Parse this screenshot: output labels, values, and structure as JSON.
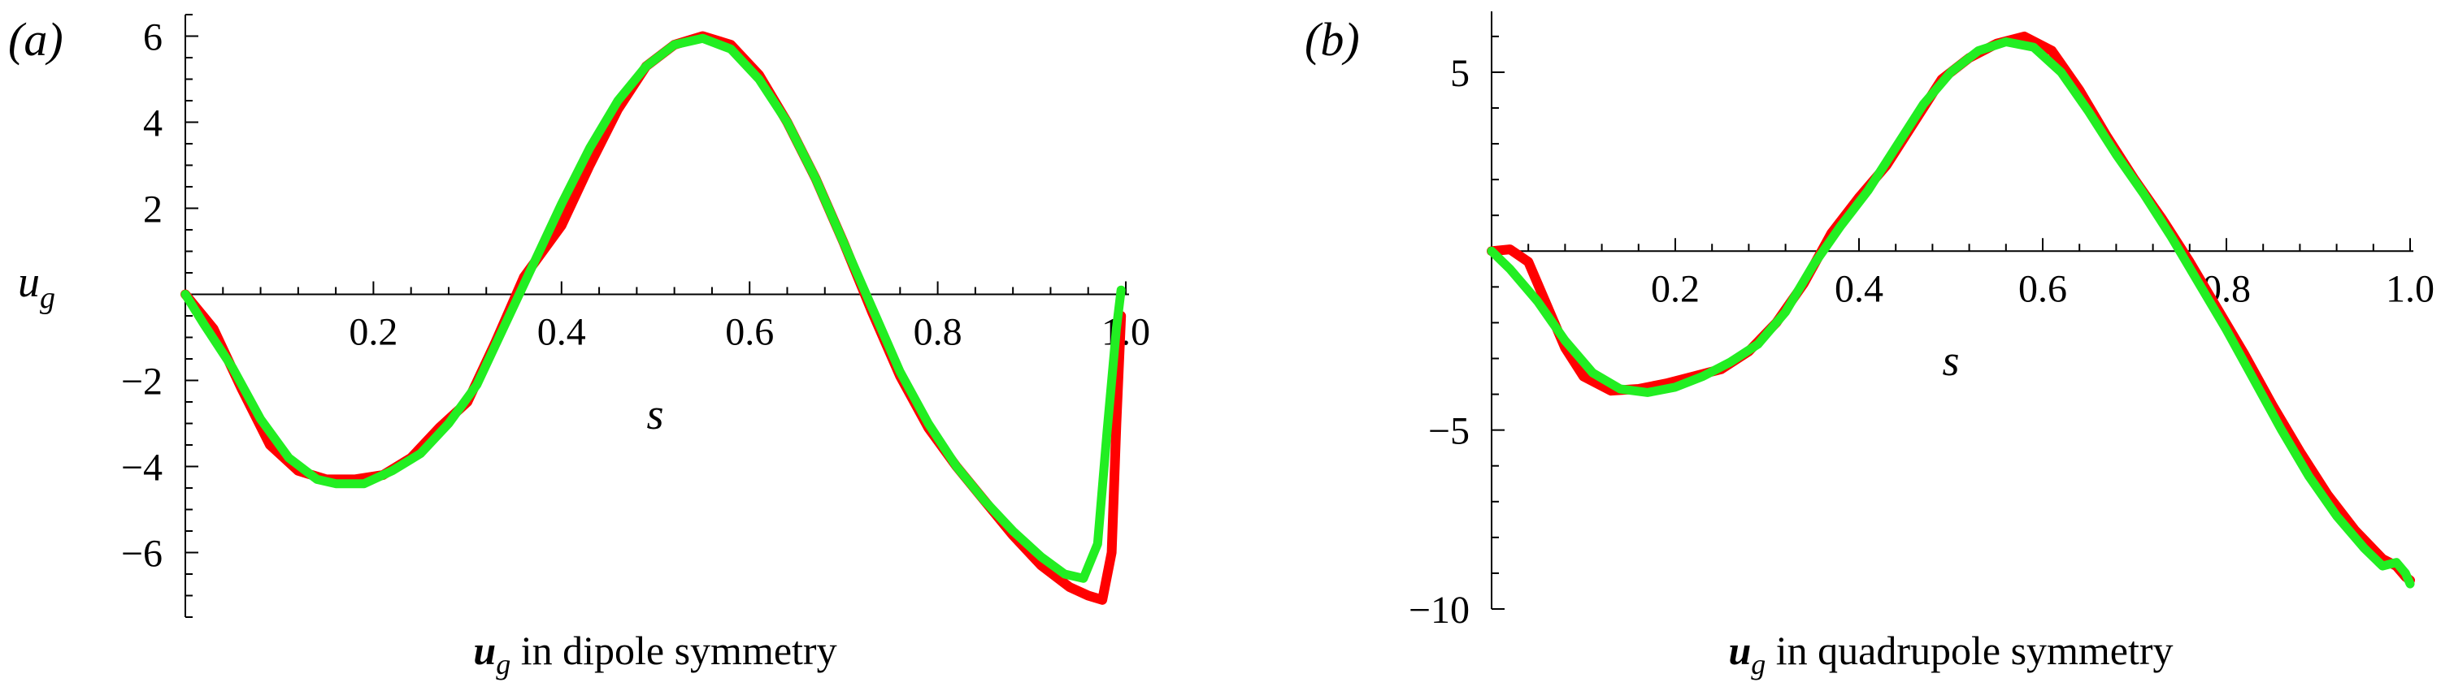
{
  "chart_data": [
    {
      "type": "line",
      "panel_label": "(a)",
      "caption": {
        "variable": "u",
        "subscript": "g",
        "text": " in dipole symmetry"
      },
      "ylabel": {
        "variable": "u",
        "subscript": "g"
      },
      "xlabel": "s",
      "xlim": [
        0,
        1
      ],
      "ylim": [
        -7.5,
        6.5
      ],
      "x_ticks": [
        0.2,
        0.4,
        0.6,
        0.8,
        1.0
      ],
      "x_tick_labels": [
        "0.2",
        "0.4",
        "0.6",
        "0.8",
        "1.0"
      ],
      "y_ticks": [
        -6,
        -4,
        -2,
        2,
        4,
        6
      ],
      "y_tick_labels": [
        "−6",
        "−4",
        "−2",
        "2",
        "4",
        "6"
      ],
      "series": [
        {
          "color": "#ff0000",
          "points": [
            [
              0,
              0
            ],
            [
              0.03,
              -0.8
            ],
            [
              0.06,
              -2.2
            ],
            [
              0.09,
              -3.5
            ],
            [
              0.12,
              -4.1
            ],
            [
              0.15,
              -4.3
            ],
            [
              0.18,
              -4.3
            ],
            [
              0.21,
              -4.2
            ],
            [
              0.24,
              -3.8
            ],
            [
              0.27,
              -3.1
            ],
            [
              0.3,
              -2.5
            ],
            [
              0.33,
              -1.1
            ],
            [
              0.36,
              0.4
            ],
            [
              0.4,
              1.6
            ],
            [
              0.43,
              3.0
            ],
            [
              0.46,
              4.3
            ],
            [
              0.49,
              5.3
            ],
            [
              0.52,
              5.8
            ],
            [
              0.55,
              6.0
            ],
            [
              0.58,
              5.8
            ],
            [
              0.61,
              5.1
            ],
            [
              0.64,
              4.0
            ],
            [
              0.67,
              2.7
            ],
            [
              0.7,
              1.2
            ],
            [
              0.73,
              -0.4
            ],
            [
              0.76,
              -1.9
            ],
            [
              0.79,
              -3.1
            ],
            [
              0.82,
              -4.0
            ],
            [
              0.85,
              -4.8
            ],
            [
              0.88,
              -5.6
            ],
            [
              0.91,
              -6.3
            ],
            [
              0.94,
              -6.8
            ],
            [
              0.96,
              -7.0
            ],
            [
              0.975,
              -7.1
            ],
            [
              0.985,
              -6.0
            ],
            [
              0.99,
              -3.0
            ],
            [
              0.995,
              -0.5
            ]
          ]
        },
        {
          "color": "#22ee22",
          "points": [
            [
              0,
              0
            ],
            [
              0.02,
              -0.7
            ],
            [
              0.05,
              -1.7
            ],
            [
              0.08,
              -2.9
            ],
            [
              0.11,
              -3.8
            ],
            [
              0.14,
              -4.3
            ],
            [
              0.16,
              -4.4
            ],
            [
              0.19,
              -4.4
            ],
            [
              0.22,
              -4.1
            ],
            [
              0.25,
              -3.7
            ],
            [
              0.28,
              -3.0
            ],
            [
              0.31,
              -2.1
            ],
            [
              0.34,
              -0.7
            ],
            [
              0.37,
              0.7
            ],
            [
              0.4,
              2.1
            ],
            [
              0.43,
              3.4
            ],
            [
              0.46,
              4.5
            ],
            [
              0.49,
              5.3
            ],
            [
              0.52,
              5.8
            ],
            [
              0.55,
              5.95
            ],
            [
              0.58,
              5.7
            ],
            [
              0.61,
              5.0
            ],
            [
              0.64,
              4.0
            ],
            [
              0.67,
              2.7
            ],
            [
              0.7,
              1.2
            ],
            [
              0.73,
              -0.3
            ],
            [
              0.76,
              -1.8
            ],
            [
              0.79,
              -3.0
            ],
            [
              0.82,
              -4.0
            ],
            [
              0.85,
              -4.8
            ],
            [
              0.88,
              -5.5
            ],
            [
              0.91,
              -6.1
            ],
            [
              0.935,
              -6.5
            ],
            [
              0.955,
              -6.6
            ],
            [
              0.97,
              -5.8
            ],
            [
              0.98,
              -3.2
            ],
            [
              0.99,
              -0.8
            ],
            [
              0.995,
              0.1
            ]
          ]
        }
      ]
    },
    {
      "type": "line",
      "panel_label": "(b)",
      "caption": {
        "variable": "u",
        "subscript": "g",
        "text": " in quadrupole symmetry"
      },
      "xlabel": "s",
      "xlim": [
        0,
        1
      ],
      "ylim": [
        -10,
        6.7
      ],
      "x_ticks": [
        0.2,
        0.4,
        0.6,
        0.8,
        1.0
      ],
      "x_tick_labels": [
        "0.2",
        "0.4",
        "0.6",
        "0.8",
        "1.0"
      ],
      "y_ticks": [
        -10,
        -5,
        5
      ],
      "y_tick_labels": [
        "−10",
        "−5",
        "5"
      ],
      "series": [
        {
          "color": "#ff0000",
          "points": [
            [
              0,
              0
            ],
            [
              0.02,
              0.05
            ],
            [
              0.04,
              -0.3
            ],
            [
              0.06,
              -1.5
            ],
            [
              0.08,
              -2.7
            ],
            [
              0.1,
              -3.5
            ],
            [
              0.13,
              -3.9
            ],
            [
              0.16,
              -3.85
            ],
            [
              0.19,
              -3.7
            ],
            [
              0.22,
              -3.5
            ],
            [
              0.25,
              -3.3
            ],
            [
              0.28,
              -2.8
            ],
            [
              0.31,
              -2.0
            ],
            [
              0.34,
              -0.9
            ],
            [
              0.37,
              0.5
            ],
            [
              0.4,
              1.5
            ],
            [
              0.43,
              2.4
            ],
            [
              0.46,
              3.6
            ],
            [
              0.49,
              4.8
            ],
            [
              0.52,
              5.4
            ],
            [
              0.55,
              5.8
            ],
            [
              0.58,
              6.0
            ],
            [
              0.61,
              5.6
            ],
            [
              0.64,
              4.5
            ],
            [
              0.67,
              3.2
            ],
            [
              0.7,
              2.0
            ],
            [
              0.73,
              0.9
            ],
            [
              0.76,
              -0.3
            ],
            [
              0.79,
              -1.6
            ],
            [
              0.82,
              -2.9
            ],
            [
              0.85,
              -4.3
            ],
            [
              0.88,
              -5.6
            ],
            [
              0.91,
              -6.8
            ],
            [
              0.94,
              -7.8
            ],
            [
              0.97,
              -8.6
            ],
            [
              0.985,
              -8.8
            ],
            [
              0.995,
              -9.1
            ],
            [
              1.0,
              -9.2
            ]
          ]
        },
        {
          "color": "#22ee22",
          "points": [
            [
              0,
              0
            ],
            [
              0.02,
              -0.5
            ],
            [
              0.05,
              -1.4
            ],
            [
              0.08,
              -2.5
            ],
            [
              0.11,
              -3.4
            ],
            [
              0.14,
              -3.85
            ],
            [
              0.17,
              -3.95
            ],
            [
              0.2,
              -3.8
            ],
            [
              0.23,
              -3.5
            ],
            [
              0.26,
              -3.1
            ],
            [
              0.29,
              -2.6
            ],
            [
              0.32,
              -1.7
            ],
            [
              0.35,
              -0.4
            ],
            [
              0.38,
              0.7
            ],
            [
              0.41,
              1.7
            ],
            [
              0.44,
              2.9
            ],
            [
              0.47,
              4.1
            ],
            [
              0.5,
              5.0
            ],
            [
              0.53,
              5.6
            ],
            [
              0.56,
              5.85
            ],
            [
              0.59,
              5.7
            ],
            [
              0.62,
              5.0
            ],
            [
              0.65,
              3.9
            ],
            [
              0.68,
              2.7
            ],
            [
              0.71,
              1.6
            ],
            [
              0.74,
              0.4
            ],
            [
              0.77,
              -0.9
            ],
            [
              0.8,
              -2.2
            ],
            [
              0.83,
              -3.6
            ],
            [
              0.86,
              -5.0
            ],
            [
              0.89,
              -6.3
            ],
            [
              0.92,
              -7.4
            ],
            [
              0.95,
              -8.3
            ],
            [
              0.97,
              -8.8
            ],
            [
              0.985,
              -8.7
            ],
            [
              0.995,
              -9.0
            ],
            [
              1.0,
              -9.3
            ]
          ]
        }
      ]
    }
  ]
}
